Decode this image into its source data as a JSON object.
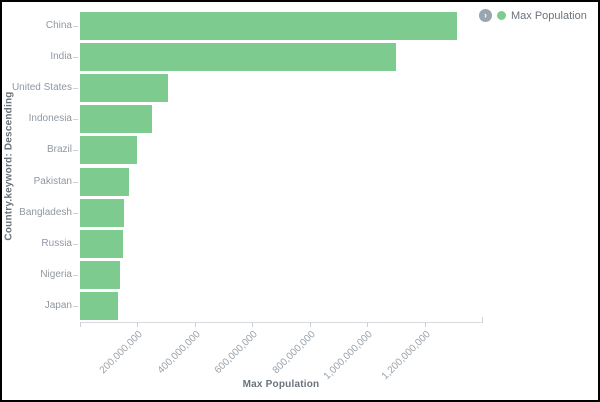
{
  "chart_data": {
    "type": "bar",
    "orientation": "horizontal",
    "title": "",
    "series_name": "Max Population",
    "xlabel": "Max Population",
    "ylabel": "Country.keyword: Descending",
    "categories": [
      "China",
      "India",
      "United States",
      "Indonesia",
      "Brazil",
      "Pakistan",
      "Bangladesh",
      "Russia",
      "Nigeria",
      "Japan"
    ],
    "values": [
      1313000000,
      1100000000,
      305000000,
      250000000,
      199000000,
      170000000,
      154000000,
      150000000,
      138000000,
      132000000
    ],
    "xlim": [
      0,
      1400000000
    ],
    "x_ticks": [
      200000000,
      400000000,
      600000000,
      800000000,
      1000000000,
      1200000000
    ],
    "x_tick_labels": [
      "200,000,000",
      "400,000,000",
      "600,000,000",
      "800,000,000",
      "1,000,000,000",
      "1,200,000,000"
    ],
    "bar_color": "#7dcb8f",
    "grid": false,
    "legend_position": "top-right"
  },
  "legend": {
    "toggle_icon": "›",
    "series": [
      {
        "label": "Max Population",
        "color": "#7dcb8f"
      }
    ]
  },
  "colors": {
    "axis_line": "#d7dbdf",
    "tick_mark": "#ccd2d7",
    "tick_label": "#9aa3ab",
    "axis_title": "#6a737b"
  }
}
